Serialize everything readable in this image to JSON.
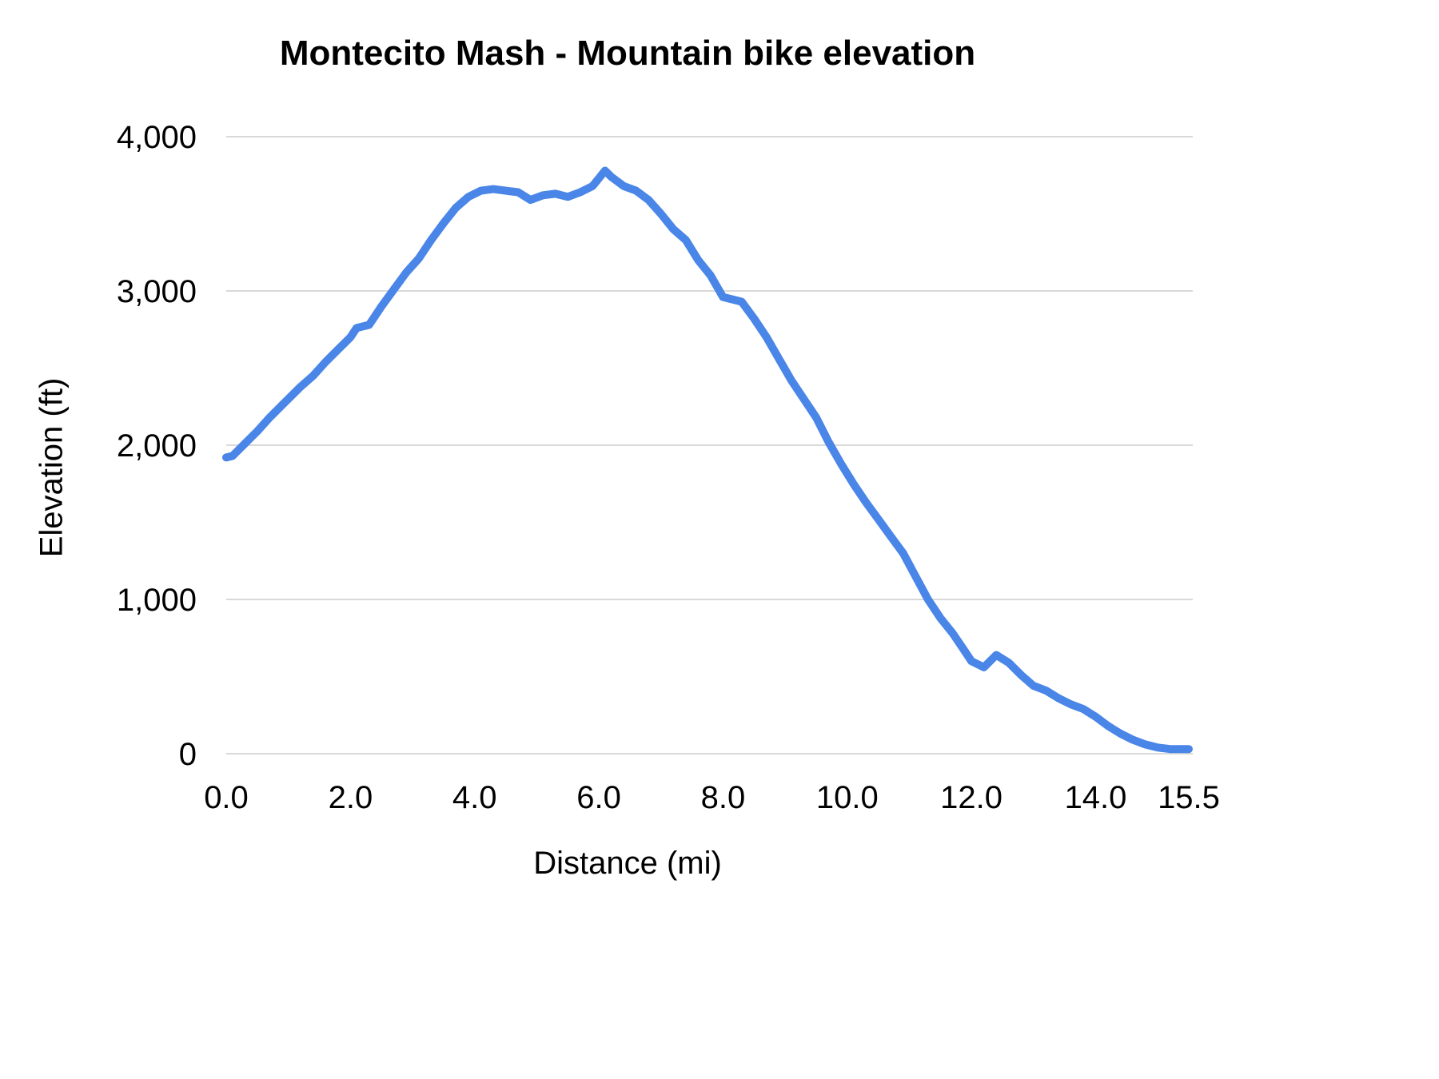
{
  "chart_data": {
    "type": "line",
    "title": "Montecito Mash - Mountain bike elevation",
    "xlabel": "Distance (mi)",
    "ylabel": "Elevation (ft)",
    "xlim": [
      0,
      15.5
    ],
    "ylim": [
      0,
      4000
    ],
    "x_ticks": [
      "0.0",
      "2.0",
      "4.0",
      "6.0",
      "8.0",
      "10.0",
      "12.0",
      "14.0",
      "15.5"
    ],
    "x_tick_values": [
      0,
      2,
      4,
      6,
      8,
      10,
      12,
      14,
      15.5
    ],
    "y_ticks": [
      "0",
      "1,000",
      "2,000",
      "3,000",
      "4,000"
    ],
    "y_tick_values": [
      0,
      1000,
      2000,
      3000,
      4000
    ],
    "grid": true,
    "legend": "none",
    "line_color": "#4a86e8",
    "grid_color": "#d9d9d9",
    "x": [
      0.0,
      0.1,
      0.3,
      0.5,
      0.7,
      0.9,
      1.0,
      1.2,
      1.4,
      1.6,
      1.8,
      2.0,
      2.1,
      2.3,
      2.5,
      2.7,
      2.9,
      3.1,
      3.3,
      3.5,
      3.7,
      3.9,
      4.1,
      4.3,
      4.5,
      4.7,
      4.9,
      5.1,
      5.3,
      5.5,
      5.7,
      5.9,
      6.0,
      6.1,
      6.2,
      6.4,
      6.6,
      6.8,
      7.0,
      7.2,
      7.4,
      7.6,
      7.8,
      8.0,
      8.1,
      8.3,
      8.5,
      8.7,
      8.9,
      9.1,
      9.3,
      9.5,
      9.7,
      9.9,
      10.1,
      10.3,
      10.5,
      10.7,
      10.9,
      11.1,
      11.3,
      11.5,
      11.7,
      11.9,
      12.0,
      12.2,
      12.4,
      12.6,
      12.8,
      13.0,
      13.2,
      13.4,
      13.6,
      13.8,
      14.0,
      14.2,
      14.4,
      14.6,
      14.8,
      15.0,
      15.2,
      15.5
    ],
    "elevation_ft": [
      1920,
      1930,
      2010,
      2090,
      2180,
      2260,
      2300,
      2380,
      2450,
      2540,
      2620,
      2700,
      2760,
      2780,
      2900,
      3010,
      3120,
      3210,
      3330,
      3440,
      3540,
      3610,
      3650,
      3660,
      3650,
      3640,
      3590,
      3620,
      3630,
      3610,
      3640,
      3680,
      3730,
      3780,
      3740,
      3680,
      3650,
      3590,
      3500,
      3400,
      3330,
      3200,
      3100,
      2960,
      2950,
      2930,
      2820,
      2700,
      2560,
      2420,
      2300,
      2180,
      2020,
      1880,
      1750,
      1630,
      1520,
      1410,
      1300,
      1150,
      1000,
      880,
      780,
      660,
      600,
      560,
      640,
      590,
      510,
      440,
      410,
      360,
      320,
      290,
      240,
      180,
      130,
      90,
      60,
      40,
      30,
      30
    ]
  }
}
